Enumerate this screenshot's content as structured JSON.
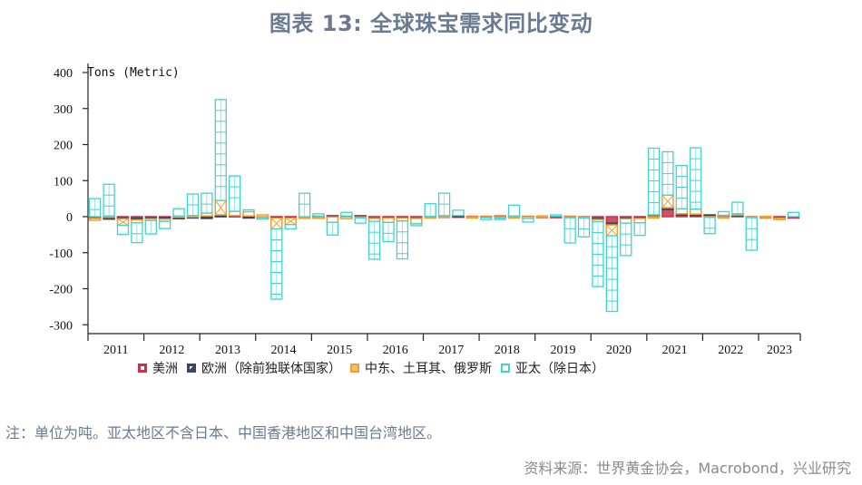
{
  "title": "图表 13: 全球珠宝需求同比变动",
  "note": "注：单位为吨。亚太地区不含日本、中国香港地区和中国台湾地区。",
  "source": "资料来源：世界黄金协会，Macrobond，兴业研究",
  "legend": [
    {
      "label": "美洲",
      "color": "#c8324b"
    },
    {
      "label": "欧洲（除前独联体国家）",
      "color": "#3a4663"
    },
    {
      "label": "中东、土耳其、俄罗斯",
      "color": "#f0a030"
    },
    {
      "label": "亚太（除日本）",
      "color": "#40d4d0"
    }
  ],
  "chart_data": {
    "type": "bar",
    "stacked": true,
    "title": "图表 13: 全球珠宝需求同比变动",
    "ylabel": "Tons (Metric)",
    "xlabel": "",
    "ylim": [
      -330,
      420
    ],
    "yticks": [
      400,
      300,
      200,
      100,
      0,
      -100,
      -200,
      -300
    ],
    "x_groups": [
      "2011",
      "2012",
      "2013",
      "2014",
      "2015",
      "2016",
      "2017",
      "2018",
      "2019",
      "2020",
      "2021",
      "2022",
      "2023"
    ],
    "categories": [
      "2011Q1",
      "2011Q2",
      "2011Q3",
      "2011Q4",
      "2012Q1",
      "2012Q2",
      "2012Q3",
      "2012Q4",
      "2013Q1",
      "2013Q2",
      "2013Q3",
      "2013Q4",
      "2014Q1",
      "2014Q2",
      "2014Q3",
      "2014Q4",
      "2015Q1",
      "2015Q2",
      "2015Q3",
      "2015Q4",
      "2016Q1",
      "2016Q2",
      "2016Q3",
      "2016Q4",
      "2017Q1",
      "2017Q2",
      "2017Q3",
      "2017Q4",
      "2018Q1",
      "2018Q2",
      "2018Q3",
      "2018Q4",
      "2019Q1",
      "2019Q2",
      "2019Q3",
      "2019Q4",
      "2020Q1",
      "2020Q2",
      "2020Q3",
      "2020Q4",
      "2021Q1",
      "2021Q2",
      "2021Q3",
      "2021Q4",
      "2022Q1",
      "2022Q2",
      "2022Q3",
      "2022Q4",
      "2023Q1",
      "2023Q2",
      "2023Q3"
    ],
    "series": [
      {
        "name": "美洲",
        "color": "#c8324b",
        "values": [
          -2,
          -3,
          -3,
          -4,
          -3,
          -3,
          -2,
          0,
          2,
          3,
          3,
          2,
          -2,
          -2,
          -3,
          -1,
          2,
          3,
          2,
          3,
          -4,
          -3,
          -3,
          -4,
          1,
          2,
          2,
          1,
          1,
          2,
          2,
          1,
          1,
          1,
          1,
          -1,
          -5,
          -18,
          -4,
          -3,
          4,
          20,
          6,
          5,
          3,
          3,
          4,
          -1,
          -2,
          -3,
          -3
        ]
      },
      {
        "name": "欧洲（除前独联体国家）",
        "color": "#3a4663",
        "values": [
          -3,
          -2,
          -3,
          -5,
          -3,
          -4,
          -2,
          -3,
          -5,
          2,
          0,
          -1,
          -1,
          -2,
          -1,
          0,
          -1,
          -1,
          -1,
          -1,
          -1,
          -1,
          -1,
          -1,
          0,
          0,
          1,
          0,
          0,
          0,
          0,
          0,
          0,
          0,
          0,
          0,
          -3,
          -5,
          -2,
          -2,
          1,
          5,
          2,
          2,
          2,
          1,
          1,
          0,
          0,
          -1,
          0
        ]
      },
      {
        "name": "中东、土耳其、俄罗斯",
        "color": "#f0a030",
        "values": [
          -5,
          2,
          -18,
          -8,
          -5,
          -6,
          2,
          3,
          8,
          40,
          12,
          12,
          5,
          -30,
          -18,
          -2,
          -3,
          -15,
          -5,
          -3,
          -8,
          -12,
          -8,
          -15,
          -3,
          1,
          0,
          -1,
          -3,
          -4,
          -3,
          -5,
          1,
          0,
          -3,
          -3,
          -6,
          -30,
          -12,
          -12,
          -2,
          35,
          14,
          14,
          -2,
          -3,
          3,
          -2,
          1,
          -2,
          0
        ]
      },
      {
        "name": "亚太（除日本）",
        "color": "#40d4d0",
        "values": [
          50,
          88,
          -25,
          -55,
          -37,
          -20,
          20,
          60,
          55,
          280,
          98,
          5,
          -3,
          -195,
          -12,
          65,
          6,
          -35,
          10,
          -14,
          -105,
          -53,
          -105,
          -5,
          35,
          62,
          15,
          0,
          -5,
          -2,
          30,
          -10,
          0,
          4,
          -70,
          -52,
          -180,
          -210,
          -90,
          -35,
          185,
          120,
          120,
          170,
          -45,
          10,
          32,
          -90,
          0,
          0,
          12
        ]
      }
    ]
  }
}
